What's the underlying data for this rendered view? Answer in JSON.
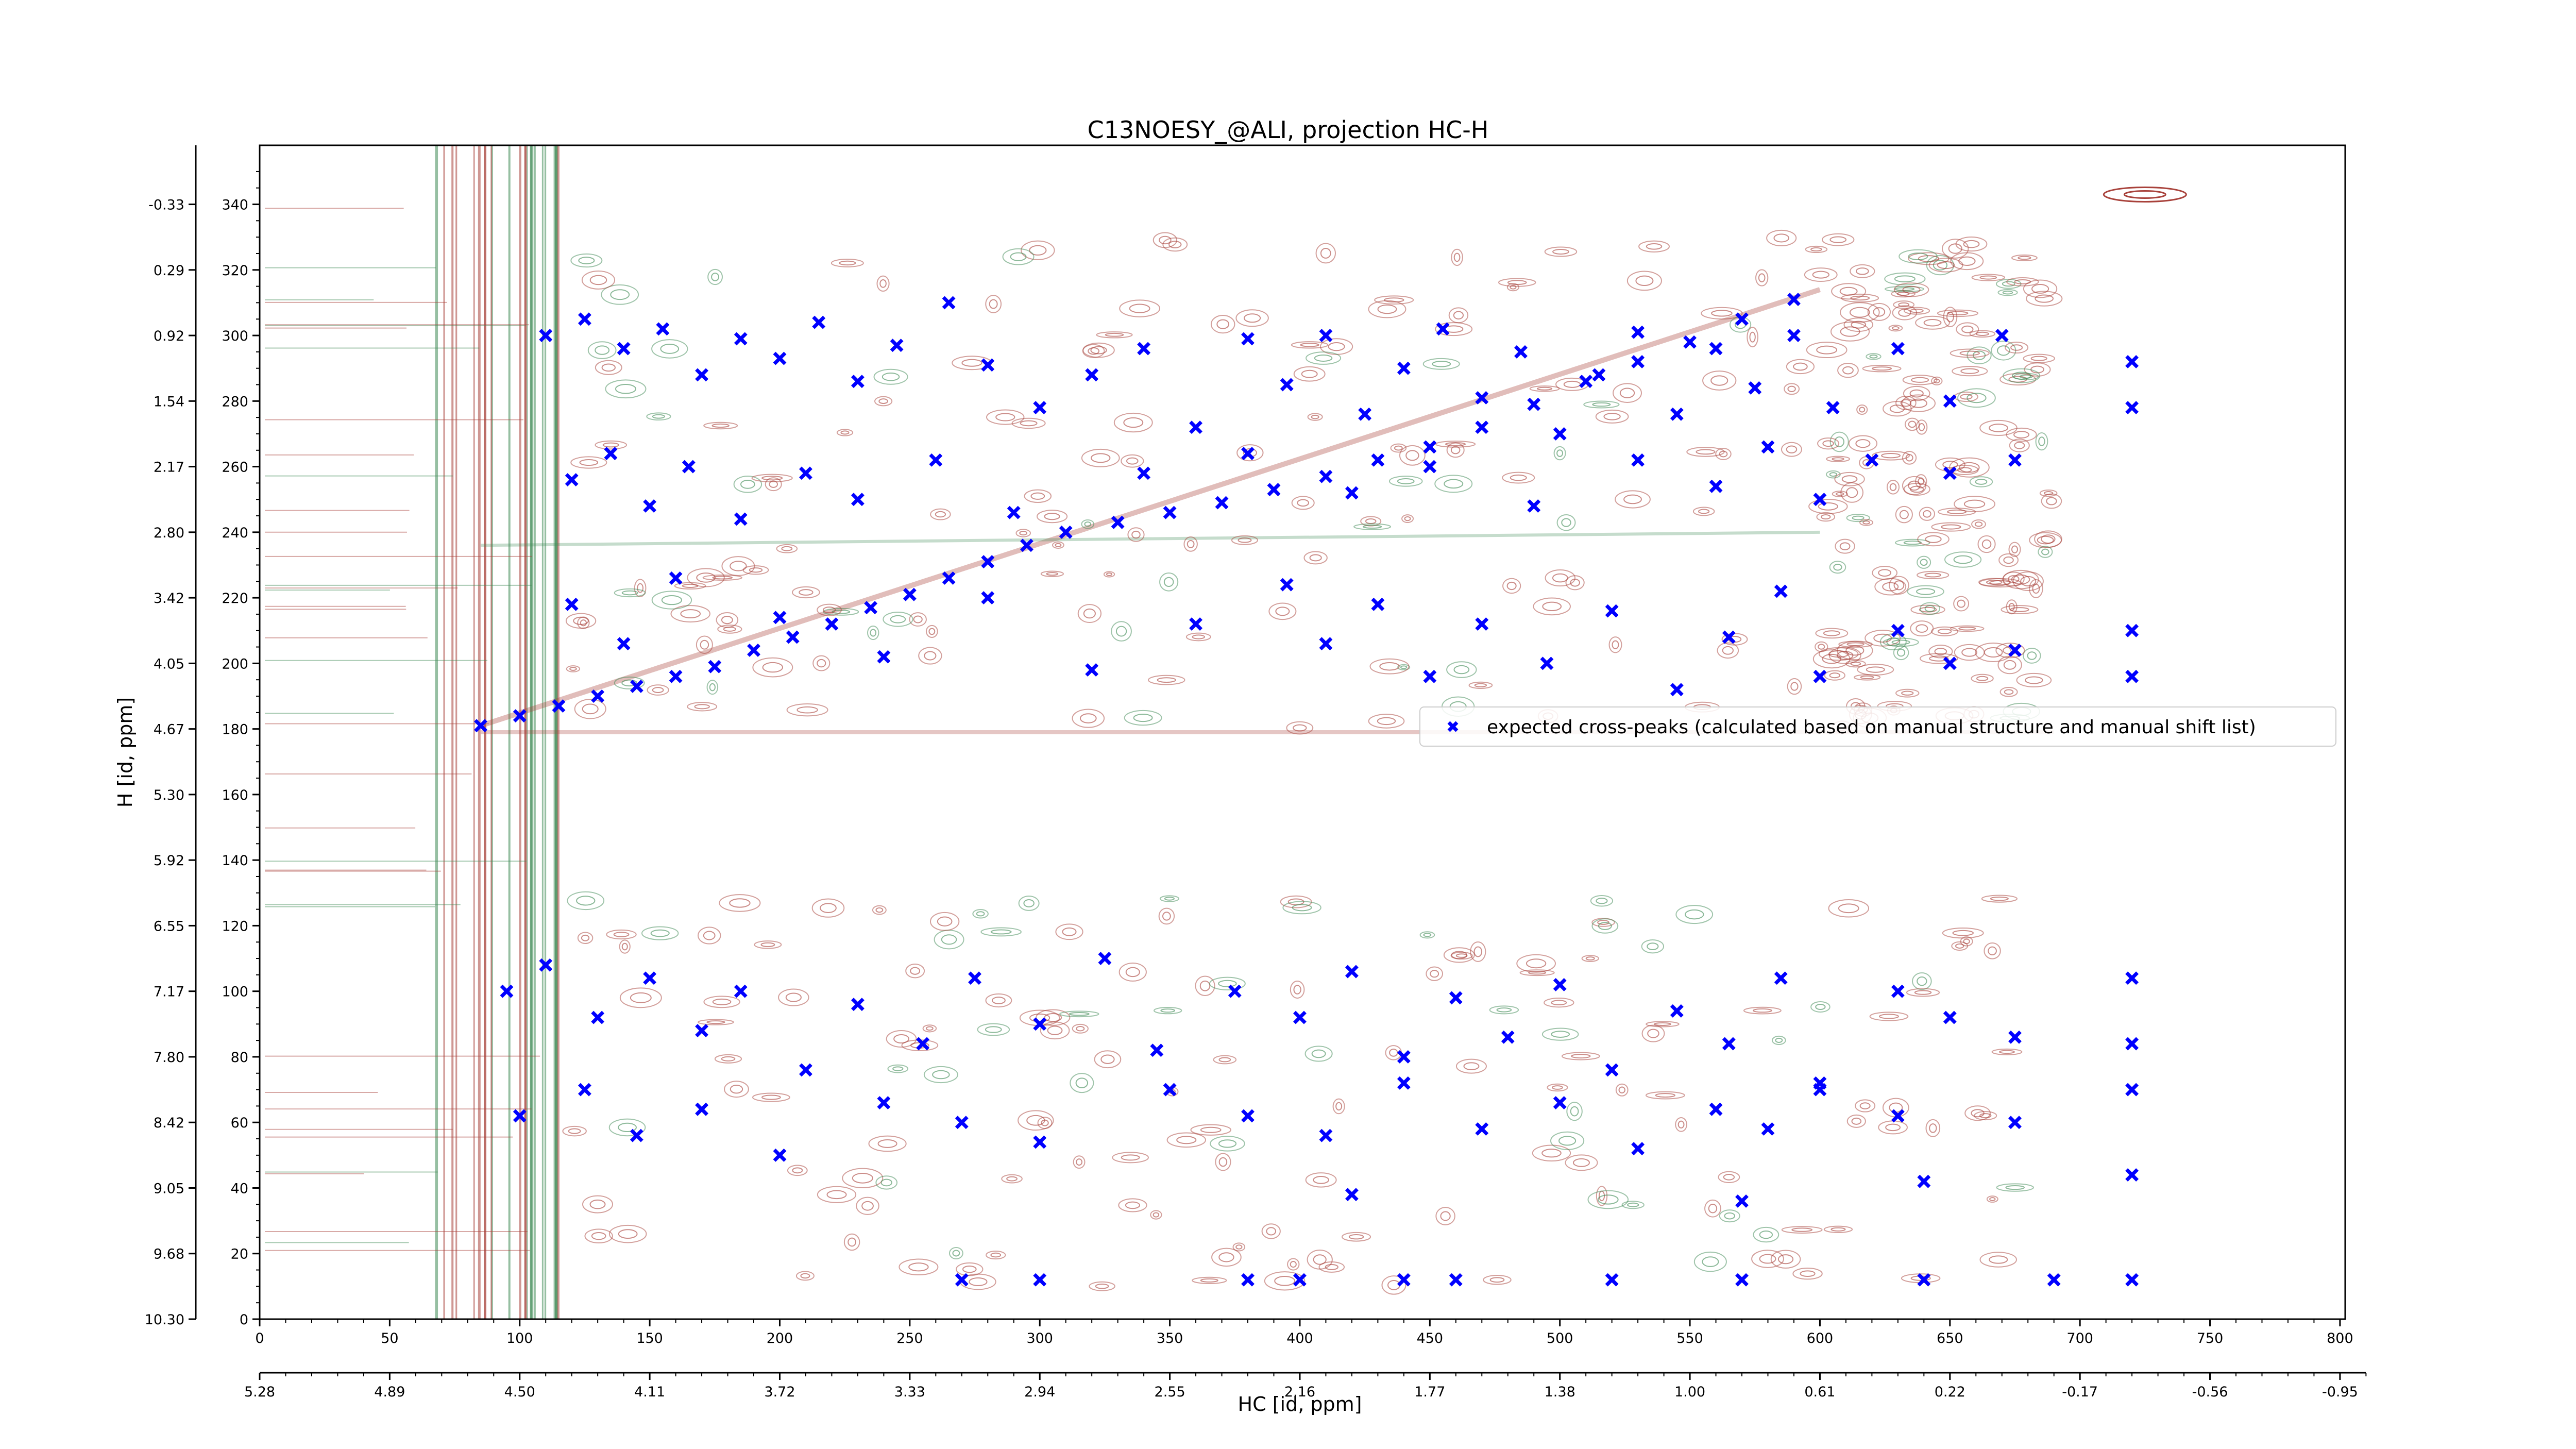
{
  "chart_data": {
    "type": "scatter",
    "title": "C13NOESY_@ALI, projection HC-H",
    "xlabel": "HC [id, ppm]",
    "ylabel": "H [id, ppm]",
    "xlim": [
      0,
      802
    ],
    "ylim": [
      0,
      358
    ],
    "x_ticks": [
      0,
      50,
      100,
      150,
      200,
      250,
      300,
      350,
      400,
      450,
      500,
      550,
      600,
      650,
      700,
      750,
      800
    ],
    "x_ppm_ticks": [
      "5.28",
      "4.89",
      "4.50",
      "4.11",
      "3.72",
      "3.33",
      "2.94",
      "2.55",
      "2.16",
      "1.77",
      "1.38",
      "1.00",
      "0.61",
      "0.22",
      "-0.17",
      "-0.56",
      "-0.95"
    ],
    "y_ticks": [
      0,
      20,
      40,
      60,
      80,
      100,
      120,
      140,
      160,
      180,
      200,
      220,
      240,
      260,
      280,
      300,
      320,
      340
    ],
    "y_ppm_ticks": [
      "10.30",
      "9.68",
      "9.05",
      "8.42",
      "7.80",
      "7.17",
      "6.55",
      "5.92",
      "5.30",
      "4.67",
      "4.05",
      "3.42",
      "2.80",
      "2.17",
      "1.54",
      "0.92",
      "0.29",
      "-0.33"
    ],
    "grid": false,
    "legend_position": "right",
    "series": [
      {
        "name": "expected cross-peaks (calculated based on manual structure and manual shift list)",
        "color": "#0000ff",
        "marker": "x-filled",
        "points": [
          [
            85,
            181
          ],
          [
            100,
            184
          ],
          [
            115,
            187
          ],
          [
            130,
            190
          ],
          [
            145,
            193
          ],
          [
            160,
            196
          ],
          [
            175,
            199
          ],
          [
            190,
            204
          ],
          [
            205,
            208
          ],
          [
            220,
            212
          ],
          [
            235,
            217
          ],
          [
            250,
            221
          ],
          [
            265,
            226
          ],
          [
            280,
            231
          ],
          [
            295,
            236
          ],
          [
            310,
            240
          ],
          [
            330,
            243
          ],
          [
            350,
            246
          ],
          [
            370,
            249
          ],
          [
            390,
            253
          ],
          [
            410,
            257
          ],
          [
            430,
            262
          ],
          [
            450,
            266
          ],
          [
            470,
            272
          ],
          [
            490,
            279
          ],
          [
            510,
            286
          ],
          [
            530,
            292
          ],
          [
            550,
            298
          ],
          [
            570,
            305
          ],
          [
            590,
            311
          ],
          [
            110,
            300
          ],
          [
            125,
            305
          ],
          [
            140,
            296
          ],
          [
            155,
            302
          ],
          [
            170,
            288
          ],
          [
            185,
            299
          ],
          [
            200,
            293
          ],
          [
            215,
            304
          ],
          [
            230,
            286
          ],
          [
            245,
            297
          ],
          [
            265,
            310
          ],
          [
            280,
            291
          ],
          [
            300,
            278
          ],
          [
            320,
            288
          ],
          [
            340,
            296
          ],
          [
            360,
            272
          ],
          [
            380,
            299
          ],
          [
            395,
            285
          ],
          [
            410,
            300
          ],
          [
            425,
            276
          ],
          [
            440,
            290
          ],
          [
            455,
            302
          ],
          [
            470,
            281
          ],
          [
            485,
            295
          ],
          [
            500,
            270
          ],
          [
            515,
            288
          ],
          [
            530,
            301
          ],
          [
            545,
            276
          ],
          [
            560,
            296
          ],
          [
            575,
            284
          ],
          [
            590,
            300
          ],
          [
            605,
            278
          ],
          [
            630,
            296
          ],
          [
            650,
            280
          ],
          [
            670,
            300
          ],
          [
            720,
            292
          ],
          [
            720,
            278
          ],
          [
            120,
            256
          ],
          [
            135,
            264
          ],
          [
            150,
            248
          ],
          [
            165,
            260
          ],
          [
            185,
            244
          ],
          [
            210,
            258
          ],
          [
            230,
            250
          ],
          [
            260,
            262
          ],
          [
            290,
            246
          ],
          [
            340,
            258
          ],
          [
            380,
            264
          ],
          [
            420,
            252
          ],
          [
            450,
            260
          ],
          [
            490,
            248
          ],
          [
            530,
            262
          ],
          [
            560,
            254
          ],
          [
            580,
            266
          ],
          [
            600,
            250
          ],
          [
            620,
            262
          ],
          [
            650,
            258
          ],
          [
            675,
            262
          ],
          [
            120,
            218
          ],
          [
            140,
            206
          ],
          [
            160,
            226
          ],
          [
            200,
            214
          ],
          [
            240,
            202
          ],
          [
            280,
            220
          ],
          [
            320,
            198
          ],
          [
            360,
            212
          ],
          [
            395,
            224
          ],
          [
            410,
            206
          ],
          [
            430,
            218
          ],
          [
            450,
            196
          ],
          [
            470,
            212
          ],
          [
            495,
            200
          ],
          [
            520,
            216
          ],
          [
            545,
            192
          ],
          [
            565,
            208
          ],
          [
            585,
            222
          ],
          [
            600,
            196
          ],
          [
            630,
            210
          ],
          [
            650,
            200
          ],
          [
            675,
            204
          ],
          [
            720,
            196
          ],
          [
            720,
            210
          ],
          [
            95,
            100
          ],
          [
            110,
            108
          ],
          [
            130,
            92
          ],
          [
            150,
            104
          ],
          [
            170,
            88
          ],
          [
            185,
            100
          ],
          [
            210,
            76
          ],
          [
            230,
            96
          ],
          [
            255,
            84
          ],
          [
            275,
            104
          ],
          [
            300,
            90
          ],
          [
            325,
            110
          ],
          [
            345,
            82
          ],
          [
            375,
            100
          ],
          [
            400,
            92
          ],
          [
            420,
            106
          ],
          [
            440,
            80
          ],
          [
            460,
            98
          ],
          [
            480,
            86
          ],
          [
            500,
            102
          ],
          [
            520,
            76
          ],
          [
            545,
            94
          ],
          [
            565,
            84
          ],
          [
            585,
            104
          ],
          [
            600,
            72
          ],
          [
            630,
            100
          ],
          [
            650,
            92
          ],
          [
            675,
            86
          ],
          [
            720,
            104
          ],
          [
            720,
            84
          ],
          [
            100,
            62
          ],
          [
            125,
            70
          ],
          [
            145,
            56
          ],
          [
            170,
            64
          ],
          [
            200,
            50
          ],
          [
            240,
            66
          ],
          [
            270,
            60
          ],
          [
            300,
            54
          ],
          [
            350,
            70
          ],
          [
            380,
            62
          ],
          [
            410,
            56
          ],
          [
            440,
            72
          ],
          [
            470,
            58
          ],
          [
            500,
            66
          ],
          [
            530,
            52
          ],
          [
            560,
            64
          ],
          [
            580,
            58
          ],
          [
            600,
            70
          ],
          [
            630,
            62
          ],
          [
            675,
            60
          ],
          [
            720,
            70
          ],
          [
            270,
            12
          ],
          [
            300,
            12
          ],
          [
            380,
            12
          ],
          [
            400,
            12
          ],
          [
            440,
            12
          ],
          [
            460,
            12
          ],
          [
            520,
            12
          ],
          [
            570,
            12
          ],
          [
            640,
            12
          ],
          [
            690,
            12
          ],
          [
            720,
            12
          ],
          [
            720,
            44
          ],
          [
            640,
            42
          ],
          [
            570,
            36
          ],
          [
            420,
            38
          ]
        ]
      }
    ]
  }
}
